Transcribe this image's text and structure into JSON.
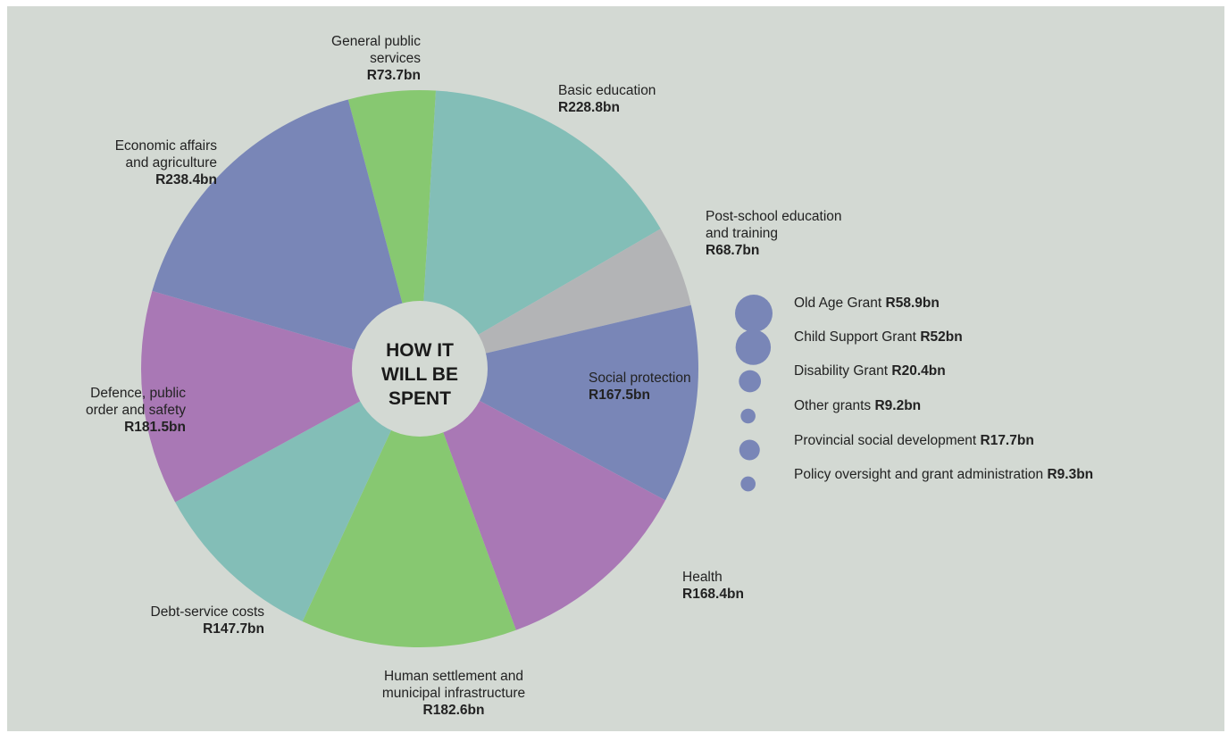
{
  "chart_data": {
    "type": "pie",
    "title": "HOW IT WILL BE SPENT",
    "unit": "R bn",
    "slices": [
      {
        "label": "General public services",
        "value": 73.7,
        "display": "R73.7bn",
        "color": "#87c871"
      },
      {
        "label": "Basic education",
        "value": 228.8,
        "display": "R228.8bn",
        "color": "#83beb7"
      },
      {
        "label": "Post-school education and training",
        "value": 68.7,
        "display": "R68.7bn",
        "color": "#b3b4b6"
      },
      {
        "label": "Social protection",
        "value": 167.5,
        "display": "R167.5bn",
        "color": "#7986b7"
      },
      {
        "label": "Health",
        "value": 168.4,
        "display": "R168.4bn",
        "color": "#a978b5"
      },
      {
        "label": "Human settlement and municipal infrastructure",
        "value": 182.6,
        "display": "R182.6bn",
        "color": "#87c871"
      },
      {
        "label": "Debt-service costs",
        "value": 147.7,
        "display": "R147.7bn",
        "color": "#83beb7"
      },
      {
        "label": "Defence, public order and safety",
        "value": 181.5,
        "display": "R181.5bn",
        "color": "#a978b5"
      },
      {
        "label": "Economic affairs and agriculture",
        "value": 238.4,
        "display": "R238.4bn",
        "color": "#7986b7"
      }
    ],
    "social_protection_breakdown": [
      {
        "label": "Old Age Grant",
        "value": 58.9,
        "display": "R58.9bn"
      },
      {
        "label": "Child Support Grant",
        "value": 52,
        "display": "R52bn"
      },
      {
        "label": "Disability Grant",
        "value": 20.4,
        "display": "R20.4bn"
      },
      {
        "label": "Other grants",
        "value": 9.2,
        "display": "R9.2bn"
      },
      {
        "label": "Provincial social development",
        "value": 17.7,
        "display": "R17.7bn"
      },
      {
        "label": "Policy oversight and grant administration",
        "value": 9.3,
        "display": "R9.3bn"
      }
    ],
    "bubble_color": "#7986b7",
    "center_color": "#d3d9d3"
  },
  "labels": {
    "general": {
      "line1": "General public",
      "line2": "services"
    },
    "basic": {
      "line1": "Basic education"
    },
    "postschool": {
      "line1": "Post-school education",
      "line2": "and training"
    },
    "social": {
      "line1": "Social protection"
    },
    "health": {
      "line1": "Health"
    },
    "human": {
      "line1": "Human settlement and",
      "line2": "municipal infrastructure"
    },
    "debt": {
      "line1": "Debt-service costs"
    },
    "defence": {
      "line1": "Defence, public",
      "line2": "order and safety"
    },
    "economic": {
      "line1": "Economic affairs",
      "line2": "and agriculture"
    }
  },
  "center": {
    "title": "HOW IT\nWILL BE\nSPENT"
  }
}
